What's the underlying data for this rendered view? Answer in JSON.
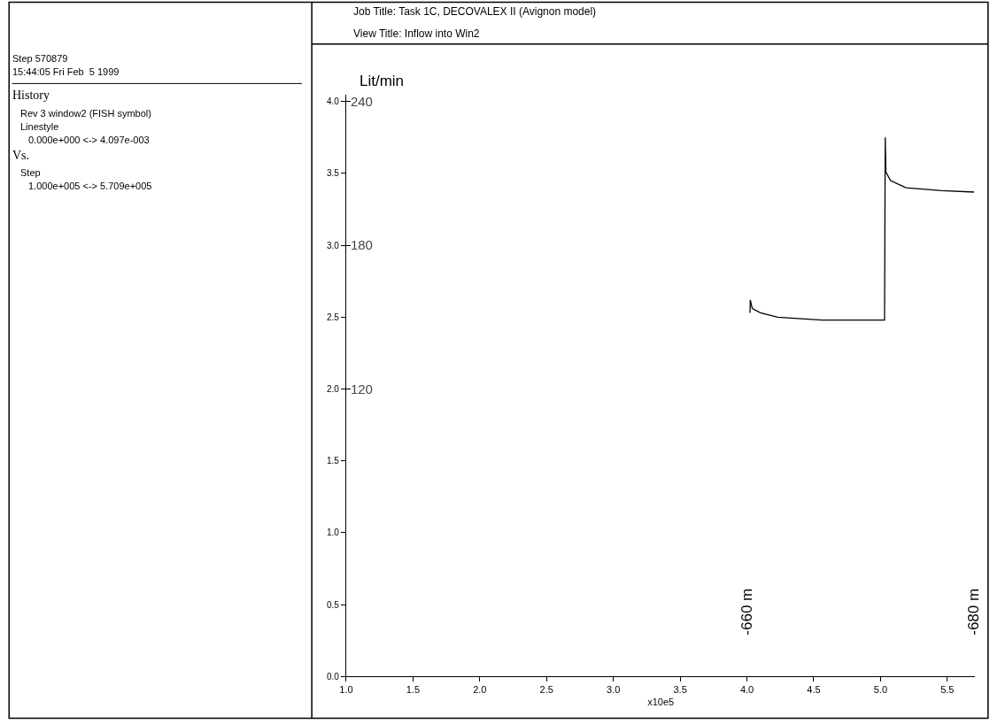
{
  "chart_data": {
    "type": "line",
    "title": "Job Title: Task 1C, DECOVALEX II (Avignon model)",
    "subtitle": "View Title: Inflow into Win2",
    "xlabel": "x10e5",
    "y2label": "Lit/min",
    "x": [
      4.023,
      4.025,
      4.04,
      4.1,
      4.23,
      4.56,
      5.02,
      5.03,
      5.035,
      5.04,
      5.075,
      5.19,
      5.455,
      5.7
    ],
    "series": [
      {
        "color": "#000000",
        "values": [
          2.53,
          2.62,
          2.56,
          2.53,
          2.5,
          2.48,
          2.48,
          2.48,
          3.75,
          3.51,
          3.45,
          3.4,
          3.38,
          3.37
        ]
      }
    ],
    "xlim": [
      1.0,
      5.709
    ],
    "xticks": [
      {
        "value": 1.0,
        "label": "1.0"
      },
      1.5,
      {
        "value": 2.0,
        "label": "2.0"
      },
      2.5,
      {
        "value": 3.0,
        "label": "3.0"
      },
      3.5,
      {
        "value": 4.0,
        "label": "4.0"
      },
      4.5,
      {
        "value": 5.0,
        "label": "5.0"
      },
      5.5
    ],
    "ylim": [
      0,
      4.05
    ],
    "yticks": [
      {
        "value": 0,
        "label": "0.0"
      },
      0.5,
      {
        "value": 1,
        "label": "1.0"
      },
      1.5,
      {
        "value": 2,
        "label": "2.0"
      },
      2.5,
      {
        "value": 3,
        "label": "3.0"
      },
      3.5,
      {
        "value": 4,
        "label": "4.0"
      }
    ],
    "y2lim": [
      0,
      243
    ],
    "y2ticks": [
      120,
      180,
      240
    ],
    "marker": "none",
    "line_style": "solid",
    "annotations": [
      "-660 m",
      "-680 m",
      "Step 570879",
      "15:44:05 Fri Feb  5 1999",
      "History",
      "Rev 3 window2 (FISH symbol)",
      "Linestyle",
      "0.000e+000 <-> 4.097e-003",
      "Vs.",
      "Step",
      "1.000e+005 <-> 5.709e+005"
    ]
  }
}
